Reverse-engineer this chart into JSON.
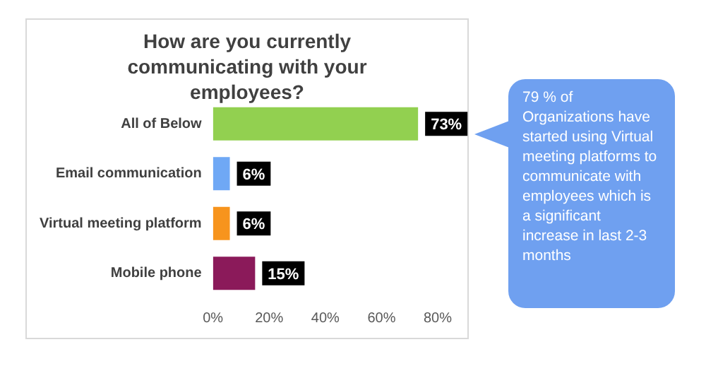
{
  "chart_data": {
    "type": "bar",
    "orientation": "horizontal",
    "title": "How are you currently communicating with your employees?",
    "categories": [
      "All of Below",
      "Email communication",
      "Virtual meeting platform",
      "Mobile phone"
    ],
    "values": [
      73,
      6,
      6,
      15
    ],
    "colors": [
      "#92d050",
      "#6fa8f5",
      "#f7941d",
      "#8b1a5a"
    ],
    "value_labels": [
      "73%",
      "6%",
      "6%",
      "15%"
    ],
    "xlim": [
      0,
      80
    ],
    "xticks": [
      {
        "value": 0,
        "label": "0%"
      },
      {
        "value": 20,
        "label": "20%"
      },
      {
        "value": 40,
        "label": "40%"
      },
      {
        "value": 60,
        "label": "60%"
      },
      {
        "value": 80,
        "label": "80%"
      }
    ],
    "grid": false,
    "legend": false,
    "annotations": [
      "79 % of Organizations have started using Virtual meeting platforms to communicate with employees which is a significant increase in last 2-3 months"
    ]
  }
}
